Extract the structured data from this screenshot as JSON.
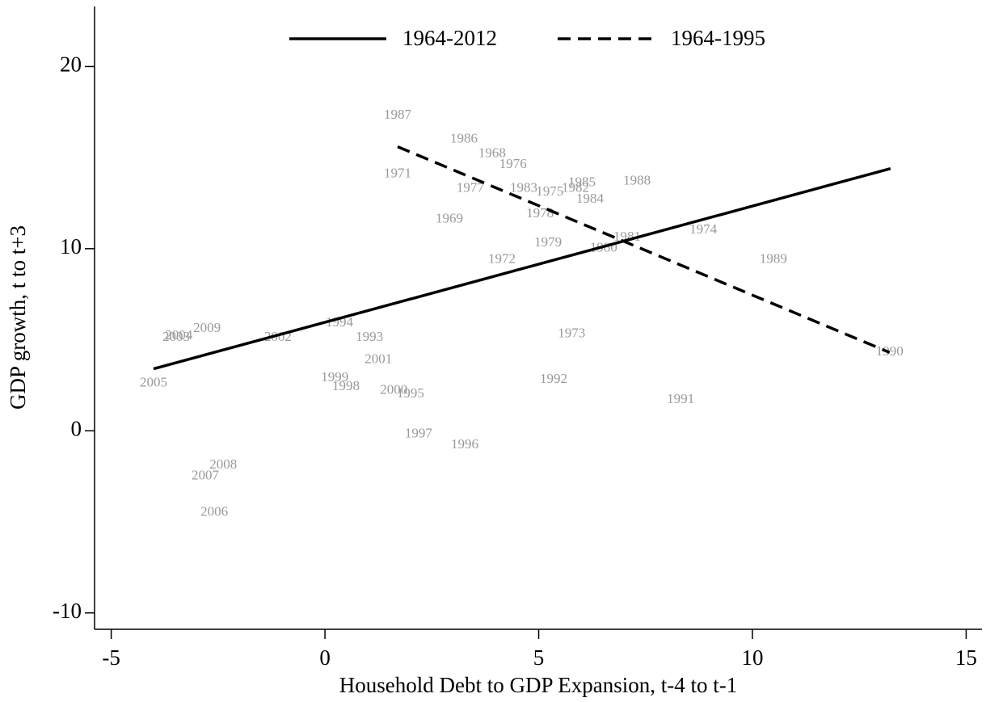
{
  "chart_data": {
    "type": "scatter",
    "x_label": "Household Debt to GDP Expansion, t-4 to t-1",
    "y_label": "GDP growth, t to t+3",
    "xlim": [
      -5.39,
      15.37
    ],
    "ylim": [
      -10.9,
      23.3
    ],
    "xticks": [
      -5,
      0,
      5,
      10,
      15
    ],
    "yticks": [
      -10,
      0,
      10,
      20
    ],
    "legend": "top",
    "series": [
      {
        "color": "#999999",
        "labels": [
          "1987",
          "1986",
          "1968",
          "1976",
          "1971",
          "1977",
          "1983",
          "1975",
          "1985",
          "1982",
          "1988",
          "1984",
          "1978",
          "1969",
          "1979",
          "1981",
          "1980",
          "1974",
          "1972",
          "1989",
          "1994",
          "2009",
          "2004",
          "2003",
          "2002",
          "1993",
          "1973",
          "1990",
          "2001",
          "2005",
          "1999",
          "1998",
          "2000",
          "1995",
          "1992",
          "1991",
          "1997",
          "1996",
          "2008",
          "2007",
          "2006"
        ],
        "x": [
          1.7,
          3.25,
          3.91,
          4.4,
          1.7,
          3.4,
          4.65,
          5.26,
          6.01,
          5.86,
          7.3,
          6.2,
          5.03,
          2.91,
          5.22,
          7.07,
          6.52,
          8.85,
          4.14,
          10.49,
          0.34,
          -2.76,
          -3.42,
          -3.48,
          -1.1,
          1.04,
          5.77,
          13.21,
          1.25,
          -4.01,
          0.23,
          0.49,
          1.61,
          2.0,
          5.35,
          8.32,
          2.19,
          3.27,
          -2.38,
          -2.8,
          -2.59
        ],
        "y": [
          17.3,
          16.0,
          15.2,
          14.6,
          14.1,
          13.3,
          13.3,
          13.1,
          13.6,
          13.3,
          13.7,
          12.7,
          11.9,
          11.6,
          10.3,
          10.6,
          10.0,
          11.0,
          9.4,
          9.4,
          5.9,
          5.6,
          5.2,
          5.1,
          5.1,
          5.1,
          5.3,
          4.3,
          3.9,
          2.6,
          2.9,
          2.4,
          2.2,
          2.0,
          2.8,
          1.7,
          -0.2,
          -0.8,
          -1.9,
          -2.5,
          -4.5
        ]
      }
    ],
    "lines": [
      {
        "name": "1964-2012",
        "style": "solid",
        "color": "#000000",
        "x": [
          -4.01,
          13.23
        ],
        "y": [
          3.4,
          14.4
        ]
      },
      {
        "name": "1964-1995",
        "style": "dashed",
        "color": "#000000",
        "x": [
          1.7,
          13.21
        ],
        "y": [
          15.6,
          4.3
        ]
      }
    ]
  }
}
